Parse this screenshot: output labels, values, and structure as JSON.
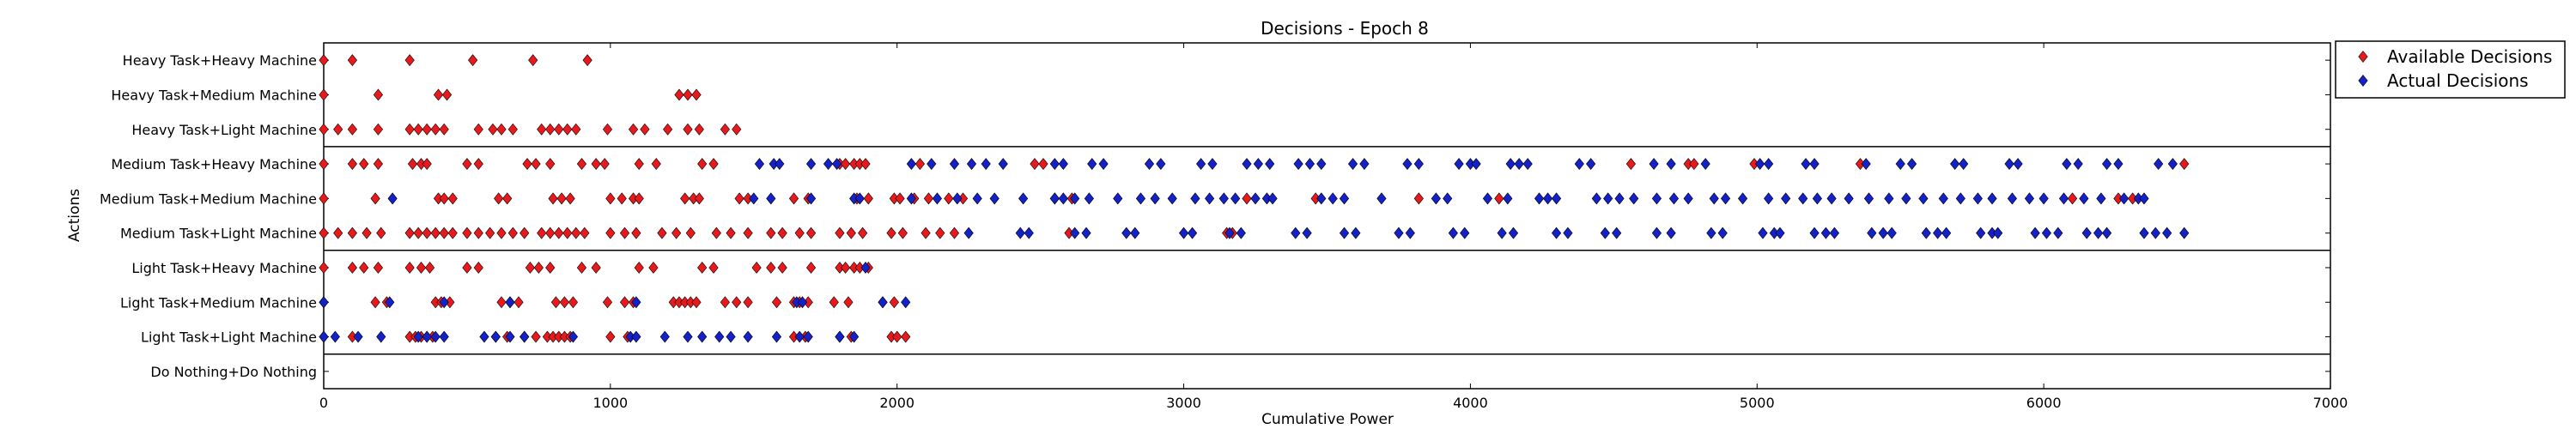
{
  "chart_data": {
    "type": "scatter",
    "title": "Decisions - Epoch 8",
    "xlabel": "Cumulative Power",
    "ylabel": "Actions",
    "xlim": [
      0,
      7000
    ],
    "xticks": [
      0,
      1000,
      2000,
      3000,
      4000,
      5000,
      6000,
      7000
    ],
    "grid": false,
    "legend_position": "outside-right-top",
    "categories": [
      "Do Nothing+Do Nothing",
      "Light Task+Light Machine",
      "Light Task+Medium Machine",
      "Light Task+Heavy Machine",
      "Medium Task+Light Machine",
      "Medium Task+Medium Machine",
      "Medium Task+Heavy Machine",
      "Heavy Task+Light Machine",
      "Heavy Task+Medium Machine",
      "Heavy Task+Heavy Machine"
    ],
    "group_separators_after": [
      0,
      3,
      6
    ],
    "series": [
      {
        "name": "Available Decisions",
        "color": "#e8191c",
        "marker": "diamond",
        "points_by_category": {
          "Light Task+Light Machine": [
            0,
            100,
            300,
            320,
            340,
            360,
            380,
            600,
            640,
            700,
            740,
            780,
            800,
            820,
            840,
            860,
            1000,
            1060,
            1640,
            1680,
            1800,
            1840,
            1980,
            2000,
            2030
          ],
          "Light Task+Medium Machine": [
            0,
            180,
            220,
            390,
            410,
            440,
            620,
            650,
            680,
            810,
            840,
            870,
            990,
            1050,
            1080,
            1220,
            1240,
            1260,
            1280,
            1300,
            1400,
            1440,
            1480,
            1580,
            1640,
            1660,
            1690,
            1780,
            1830,
            1950,
            1990
          ],
          "Light Task+Heavy Machine": [
            0,
            100,
            140,
            190,
            300,
            340,
            370,
            500,
            540,
            720,
            750,
            790,
            900,
            950,
            1100,
            1150,
            1320,
            1360,
            1510,
            1560,
            1600,
            1700,
            1800,
            1820,
            1850,
            1870,
            1900
          ],
          "Medium Task+Light Machine": [
            0,
            50,
            100,
            150,
            200,
            300,
            330,
            360,
            390,
            420,
            450,
            500,
            540,
            580,
            620,
            660,
            700,
            760,
            790,
            820,
            850,
            880,
            910,
            1000,
            1050,
            1090,
            1180,
            1230,
            1280,
            1370,
            1420,
            1480,
            1560,
            1600,
            1660,
            1700,
            1800,
            1840,
            1880,
            1980,
            2020,
            2100,
            2150,
            2200,
            2600,
            3150,
            3170
          ],
          "Medium Task+Medium Machine": [
            0,
            180,
            400,
            420,
            450,
            610,
            640,
            800,
            830,
            860,
            1000,
            1040,
            1080,
            1100,
            1260,
            1290,
            1310,
            1450,
            1480,
            1640,
            1690,
            1860,
            1900,
            1990,
            2010,
            2060,
            2110,
            2180,
            2230,
            2550,
            2610,
            3220,
            3460,
            3820,
            4100,
            6100,
            6260,
            6310
          ],
          "Medium Task+Heavy Machine": [
            0,
            100,
            140,
            190,
            310,
            340,
            360,
            500,
            540,
            710,
            740,
            790,
            900,
            950,
            980,
            1100,
            1160,
            1320,
            1360,
            1800,
            1820,
            1850,
            1870,
            1890,
            2080,
            2480,
            2510,
            4560,
            4760,
            4780,
            4990,
            5360,
            6490
          ],
          "Heavy Task+Light Machine": [
            0,
            50,
            100,
            190,
            300,
            330,
            360,
            390,
            420,
            540,
            590,
            620,
            660,
            760,
            790,
            820,
            850,
            880,
            990,
            1080,
            1120,
            1200,
            1270,
            1310,
            1400,
            1440
          ],
          "Heavy Task+Medium Machine": [
            0,
            190,
            400,
            430,
            1240,
            1270,
            1300
          ],
          "Heavy Task+Heavy Machine": [
            0,
            100,
            300,
            520,
            730,
            920
          ]
        }
      },
      {
        "name": "Actual Decisions",
        "color": "#1420c8",
        "marker": "diamond",
        "points_by_category": {
          "Light Task+Light Machine": [
            0,
            40,
            120,
            200,
            330,
            360,
            390,
            420,
            560,
            600,
            650,
            700,
            870,
            1070,
            1090,
            1190,
            1270,
            1320,
            1380,
            1420,
            1480,
            1580,
            1660,
            1690,
            1800,
            1850
          ],
          "Light Task+Medium Machine": [
            0,
            230,
            420,
            650,
            1090,
            1650,
            1670,
            1950,
            2030
          ],
          "Light Task+Heavy Machine": [
            1890
          ],
          "Medium Task+Light Machine": [
            2250,
            2430,
            2460,
            2620,
            2660,
            2800,
            2830,
            3000,
            3030,
            3160,
            3200,
            3390,
            3430,
            3560,
            3600,
            3750,
            3790,
            3940,
            3980,
            4110,
            4150,
            4300,
            4340,
            4470,
            4510,
            4650,
            4700,
            4840,
            4880,
            5020,
            5060,
            5080,
            5200,
            5240,
            5270,
            5400,
            5440,
            5470,
            5590,
            5630,
            5660,
            5780,
            5820,
            5840,
            5970,
            6010,
            6050,
            6150,
            6190,
            6220,
            6350,
            6390,
            6430,
            6490
          ],
          "Medium Task+Medium Machine": [
            240,
            1500,
            1560,
            1700,
            1850,
            1870,
            2050,
            2140,
            2210,
            2280,
            2340,
            2440,
            2550,
            2580,
            2620,
            2670,
            2770,
            2850,
            2900,
            2960,
            3040,
            3090,
            3140,
            3180,
            3250,
            3290,
            3310,
            3480,
            3520,
            3560,
            3690,
            3880,
            3920,
            4060,
            4130,
            4240,
            4270,
            4300,
            4440,
            4480,
            4520,
            4570,
            4650,
            4710,
            4760,
            4850,
            4890,
            4950,
            5040,
            5100,
            5160,
            5210,
            5260,
            5320,
            5390,
            5460,
            5520,
            5580,
            5650,
            5710,
            5770,
            5820,
            5890,
            5950,
            6000,
            6070,
            6140,
            6200,
            6280,
            6330,
            6350
          ],
          "Medium Task+Heavy Machine": [
            1520,
            1570,
            1590,
            1700,
            1760,
            1790,
            2050,
            2120,
            2200,
            2260,
            2310,
            2370,
            2550,
            2580,
            2680,
            2720,
            2880,
            2920,
            3060,
            3100,
            3220,
            3260,
            3300,
            3400,
            3440,
            3480,
            3590,
            3630,
            3780,
            3820,
            3960,
            4000,
            4020,
            4140,
            4170,
            4200,
            4380,
            4420,
            4640,
            4700,
            4820,
            5010,
            5040,
            5170,
            5200,
            5380,
            5500,
            5540,
            5690,
            5720,
            5880,
            5910,
            6080,
            6120,
            6220,
            6260,
            6400,
            6450
          ]
        }
      }
    ]
  }
}
